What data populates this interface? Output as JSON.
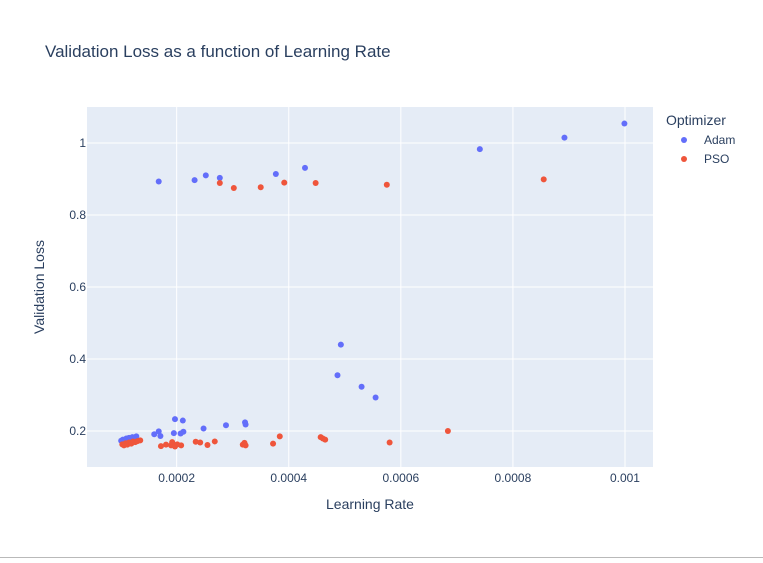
{
  "chart_data": {
    "type": "scatter",
    "title": "Validation Loss as a function of Learning Rate",
    "xlabel": "Learning Rate",
    "ylabel": "Validation Loss",
    "xlim": [
      4e-05,
      0.00105
    ],
    "ylim": [
      0.1,
      1.1
    ],
    "x_ticks": [
      {
        "value": 0.0002,
        "label": "0.0002"
      },
      {
        "value": 0.0004,
        "label": "0.0004"
      },
      {
        "value": 0.0006,
        "label": "0.0006"
      },
      {
        "value": 0.0008,
        "label": "0.0008"
      },
      {
        "value": 0.001,
        "label": "0.001"
      }
    ],
    "y_ticks": [
      {
        "value": 0.2,
        "label": "0.2"
      },
      {
        "value": 0.4,
        "label": "0.4"
      },
      {
        "value": 0.6,
        "label": "0.6"
      },
      {
        "value": 0.8,
        "label": "0.8"
      },
      {
        "value": 1.0,
        "label": "1"
      }
    ],
    "grid": true,
    "background": "#e5ecf6",
    "legend": {
      "title": "Optimizer",
      "position": "top-right"
    },
    "series": [
      {
        "name": "Adam",
        "color": "#636efa",
        "points": [
          [
            0.000101,
            0.173
          ],
          [
            0.000104,
            0.176
          ],
          [
            0.000107,
            0.17
          ],
          [
            0.00011,
            0.179
          ],
          [
            0.000112,
            0.174
          ],
          [
            0.000115,
            0.181
          ],
          [
            0.000118,
            0.177
          ],
          [
            0.000121,
            0.183
          ],
          [
            0.000125,
            0.178
          ],
          [
            0.000128,
            0.185
          ],
          [
            0.00016,
            0.191
          ],
          [
            0.000168,
            0.199
          ],
          [
            0.000171,
            0.186
          ],
          [
            0.000195,
            0.194
          ],
          [
            0.000197,
            0.233
          ],
          [
            0.000207,
            0.193
          ],
          [
            0.000211,
            0.229
          ],
          [
            0.000212,
            0.198
          ],
          [
            0.000248,
            0.207
          ],
          [
            0.000288,
            0.216
          ],
          [
            0.000322,
            0.224
          ],
          [
            0.000323,
            0.218
          ],
          [
            0.000168,
            0.893
          ],
          [
            0.000232,
            0.897
          ],
          [
            0.000252,
            0.91
          ],
          [
            0.000277,
            0.903
          ],
          [
            0.000377,
            0.914
          ],
          [
            0.000429,
            0.931
          ],
          [
            0.000487,
            0.355
          ],
          [
            0.000493,
            0.44
          ],
          [
            0.00053,
            0.323
          ],
          [
            0.000555,
            0.293
          ],
          [
            0.000741,
            0.983
          ],
          [
            0.000892,
            1.015
          ],
          [
            0.000999,
            1.054
          ]
        ]
      },
      {
        "name": "PSO",
        "color": "#ef553b",
        "points": [
          [
            0.000103,
            0.163
          ],
          [
            0.000106,
            0.16
          ],
          [
            0.000109,
            0.166
          ],
          [
            0.000112,
            0.162
          ],
          [
            0.000115,
            0.168
          ],
          [
            0.000119,
            0.165
          ],
          [
            0.000122,
            0.171
          ],
          [
            0.000126,
            0.169
          ],
          [
            0.00013,
            0.172
          ],
          [
            0.000135,
            0.174
          ],
          [
            0.000172,
            0.158
          ],
          [
            0.000181,
            0.162
          ],
          [
            0.00019,
            0.16
          ],
          [
            0.000192,
            0.169
          ],
          [
            0.000197,
            0.157
          ],
          [
            0.000201,
            0.163
          ],
          [
            0.000208,
            0.16
          ],
          [
            0.000234,
            0.17
          ],
          [
            0.000242,
            0.168
          ],
          [
            0.000255,
            0.161
          ],
          [
            0.000268,
            0.171
          ],
          [
            0.000318,
            0.162
          ],
          [
            0.000321,
            0.167
          ],
          [
            0.000323,
            0.16
          ],
          [
            0.000372,
            0.165
          ],
          [
            0.000384,
            0.185
          ],
          [
            0.000457,
            0.183
          ],
          [
            0.000461,
            0.179
          ],
          [
            0.000465,
            0.176
          ],
          [
            0.00058,
            0.168
          ],
          [
            0.000684,
            0.2
          ],
          [
            0.000277,
            0.889
          ],
          [
            0.000302,
            0.875
          ],
          [
            0.00035,
            0.877
          ],
          [
            0.000392,
            0.89
          ],
          [
            0.000448,
            0.889
          ],
          [
            0.000575,
            0.884
          ],
          [
            0.000855,
            0.899
          ]
        ]
      }
    ]
  }
}
